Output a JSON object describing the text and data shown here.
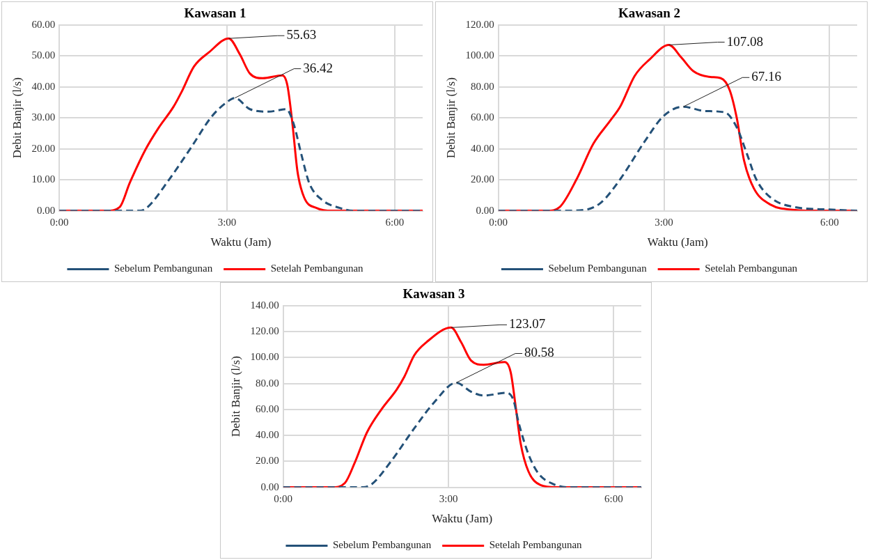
{
  "chart_data": [
    {
      "type": "line",
      "title": "Kawasan 1",
      "xlabel": "Waktu (Jam)",
      "ylabel": "Debit Banjir (l/s)",
      "xlim": [
        0,
        6.5
      ],
      "xticks": [
        {
          "value": 0,
          "label": "0:00"
        },
        {
          "value": 3,
          "label": "3:00"
        },
        {
          "value": 6,
          "label": "6:00"
        }
      ],
      "ylim": [
        0,
        60
      ],
      "yticks": [
        {
          "value": 0,
          "label": "0.00"
        },
        {
          "value": 10,
          "label": "10.00"
        },
        {
          "value": 20,
          "label": "20.00"
        },
        {
          "value": 30,
          "label": "30.00"
        },
        {
          "value": 40,
          "label": "40.00"
        },
        {
          "value": 50,
          "label": "50.00"
        },
        {
          "value": 60,
          "label": "60.00"
        }
      ],
      "grid": true,
      "legend": "bottom",
      "marker": "none",
      "series": [
        {
          "name": "Sebelum Pembangunan",
          "color": "#245178",
          "line_style": "dashed",
          "x": [
            0,
            1.45,
            1.58,
            1.95,
            2.36,
            2.73,
            3.0,
            3.14,
            3.41,
            3.74,
            4.06,
            4.19,
            4.33,
            4.47,
            4.7,
            5.02,
            5.25,
            6.5
          ],
          "values": [
            0,
            0,
            1.2,
            9.7,
            20.5,
            30.5,
            35.1,
            36.42,
            32.8,
            32.0,
            32.8,
            28.2,
            18.2,
            9.0,
            3.5,
            0.9,
            0,
            0
          ]
        },
        {
          "name": "Setelah Pembangunan",
          "color": "#ff0000",
          "line_style": "solid",
          "x": [
            0,
            0.85,
            1.08,
            1.26,
            1.54,
            1.77,
            2.04,
            2.18,
            2.41,
            2.68,
            3.03,
            3.23,
            3.41,
            3.64,
            3.99,
            4.08,
            4.17,
            4.26,
            4.38,
            4.61,
            4.88,
            6.5
          ],
          "values": [
            0,
            0,
            1.2,
            9.0,
            19.7,
            26.6,
            33.5,
            38.1,
            46.6,
            51.2,
            55.63,
            50.5,
            44.3,
            42.8,
            43.7,
            40.5,
            28.2,
            12.8,
            4.3,
            0.85,
            0,
            0
          ]
        }
      ],
      "annotations": [
        {
          "text": "55.63",
          "x": 3.03,
          "y": 55.63
        },
        {
          "text": "36.42",
          "x": 3.14,
          "y": 36.42
        }
      ]
    },
    {
      "type": "line",
      "title": "Kawasan 2",
      "xlabel": "Waktu (Jam)",
      "ylabel": "Debit Banjir (l/s)",
      "xlim": [
        0,
        6.5
      ],
      "xticks": [
        {
          "value": 0,
          "label": "0:00"
        },
        {
          "value": 3,
          "label": "3:00"
        },
        {
          "value": 6,
          "label": "6:00"
        }
      ],
      "ylim": [
        0,
        120
      ],
      "yticks": [
        {
          "value": 0,
          "label": "0.00"
        },
        {
          "value": 20,
          "label": "20.00"
        },
        {
          "value": 40,
          "label": "40.00"
        },
        {
          "value": 60,
          "label": "60.00"
        },
        {
          "value": 80,
          "label": "80.00"
        },
        {
          "value": 100,
          "label": "100.00"
        },
        {
          "value": 120,
          "label": "120.00"
        }
      ],
      "grid": true,
      "legend": "bottom",
      "marker": "none",
      "series": [
        {
          "name": "Sebelum Pembangunan",
          "color": "#245178",
          "line_style": "dashed",
          "x": [
            0,
            1.11,
            1.55,
            1.86,
            2.21,
            2.65,
            3.0,
            3.35,
            3.75,
            4.1,
            4.32,
            4.5,
            4.67,
            4.94,
            5.38,
            5.99,
            6.5
          ],
          "values": [
            0,
            0,
            0.5,
            5.3,
            20.5,
            44.7,
            61.4,
            67.16,
            64.4,
            63.6,
            53.8,
            37.1,
            20.5,
            8.3,
            2.3,
            0.8,
            0
          ]
        },
        {
          "name": "Setelah Pembangunan",
          "color": "#ff0000",
          "line_style": "solid",
          "x": [
            0,
            0.89,
            1.11,
            1.42,
            1.72,
            2.03,
            2.21,
            2.47,
            2.74,
            3.09,
            3.31,
            3.53,
            3.84,
            4.03,
            4.19,
            4.32,
            4.45,
            4.63,
            4.94,
            5.38,
            5.64,
            6.5
          ],
          "values": [
            0,
            0,
            2.3,
            20.5,
            43.2,
            58.3,
            67.4,
            87.1,
            97.7,
            107.08,
            99.2,
            90.2,
            86.4,
            85.6,
            78.0,
            59.8,
            32.6,
            14.4,
            3.8,
            0.5,
            0,
            0
          ]
        }
      ],
      "annotations": [
        {
          "text": "107.08",
          "x": 3.09,
          "y": 107.08
        },
        {
          "text": "67.16",
          "x": 3.35,
          "y": 67.16
        }
      ]
    },
    {
      "type": "line",
      "title": "Kawasan 3",
      "xlabel": "Waktu (Jam)",
      "ylabel": "Debit Banjir (l/s)",
      "xlim": [
        0,
        6.5
      ],
      "xticks": [
        {
          "value": 0,
          "label": "0:00"
        },
        {
          "value": 3,
          "label": "3:00"
        },
        {
          "value": 6,
          "label": "6:00"
        }
      ],
      "ylim": [
        0,
        140
      ],
      "yticks": [
        {
          "value": 0,
          "label": "0.00"
        },
        {
          "value": 20,
          "label": "20.00"
        },
        {
          "value": 40,
          "label": "40.00"
        },
        {
          "value": 60,
          "label": "60.00"
        },
        {
          "value": 80,
          "label": "80.00"
        },
        {
          "value": 100,
          "label": "100.00"
        },
        {
          "value": 120,
          "label": "120.00"
        },
        {
          "value": 140,
          "label": "140.00"
        }
      ],
      "grid": true,
      "legend": "bottom",
      "marker": "none",
      "series": [
        {
          "name": "Sebelum Pembangunan",
          "color": "#245178",
          "line_style": "dashed",
          "x": [
            0,
            1.45,
            1.61,
            1.97,
            2.38,
            2.74,
            3.14,
            3.41,
            3.64,
            4.06,
            4.18,
            4.27,
            4.45,
            4.63,
            4.9,
            5.21,
            6.5
          ],
          "values": [
            0,
            0,
            2.5,
            20.7,
            45.5,
            65.4,
            80.58,
            73.7,
            70.7,
            72.8,
            67.1,
            50.5,
            25.7,
            10.8,
            2.5,
            0,
            0
          ]
        },
        {
          "name": "Setelah Pembangunan",
          "color": "#ff0000",
          "line_style": "solid",
          "x": [
            0,
            0.89,
            1.12,
            1.3,
            1.52,
            1.79,
            2.06,
            2.2,
            2.38,
            2.6,
            3.05,
            3.23,
            3.41,
            3.64,
            4.02,
            4.13,
            4.22,
            4.31,
            4.45,
            4.67,
            4.94,
            6.5
          ],
          "values": [
            0,
            0,
            3.3,
            19.0,
            42.2,
            60.4,
            75.3,
            85.3,
            101.8,
            111.8,
            123.07,
            111.8,
            97.7,
            94.4,
            96.5,
            88.6,
            62.1,
            33.9,
            12.4,
            1.7,
            0,
            0
          ]
        }
      ],
      "annotations": [
        {
          "text": "123.07",
          "x": 3.05,
          "y": 123.07
        },
        {
          "text": "80.58",
          "x": 3.14,
          "y": 80.58
        }
      ]
    }
  ]
}
